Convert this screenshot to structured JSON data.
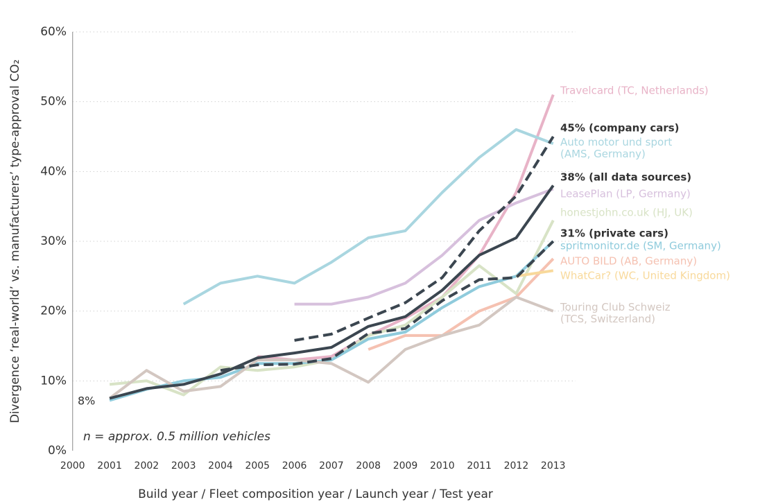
{
  "chart_data": {
    "type": "line",
    "y_label": "Divergence ‘real-world’ vs. manufacturers’ type-approval CO₂",
    "x_label": "Build year / Fleet composition year / Launch year / Test year",
    "annotations": [
      "8%",
      "n = approx. 0.5 million vehicles"
    ],
    "x": [
      2000,
      2001,
      2002,
      2003,
      2004,
      2005,
      2006,
      2007,
      2008,
      2009,
      2010,
      2011,
      2012,
      2013
    ],
    "xlim": [
      2000,
      2013
    ],
    "xticks": [
      2000,
      2001,
      2002,
      2003,
      2004,
      2005,
      2006,
      2007,
      2008,
      2009,
      2010,
      2011,
      2012,
      2013
    ],
    "ylim": [
      0,
      60
    ],
    "yticks": [
      {
        "value": 0,
        "label": "0%"
      },
      {
        "value": 10,
        "label": "10%"
      },
      {
        "value": 20,
        "label": "20%"
      },
      {
        "value": 30,
        "label": "30%"
      },
      {
        "value": 40,
        "label": "40%"
      },
      {
        "value": 50,
        "label": "50%"
      },
      {
        "value": 60,
        "label": "60%"
      }
    ],
    "grid": true,
    "series": [
      {
        "name": "Travelcard (TC, Netherlands)",
        "color": "#e8b3c7",
        "values": [
          null,
          null,
          null,
          null,
          null,
          13.5,
          13,
          13.5,
          16.5,
          19,
          22,
          28,
          37,
          51
        ]
      },
      {
        "name": "45% (company cars)",
        "color": "#3b4650",
        "dashed": true,
        "values": [
          null,
          null,
          null,
          null,
          null,
          null,
          15.8,
          16.7,
          19,
          21.2,
          24.8,
          31.5,
          36.5,
          45
        ]
      },
      {
        "name": "Auto motor und sport\n(AMS, Germany)",
        "color": "#a9d6e0",
        "values": [
          null,
          null,
          null,
          21,
          24,
          25,
          24,
          27,
          30.5,
          31.5,
          37,
          42,
          46,
          44
        ]
      },
      {
        "name": "38% (all data sources)",
        "color": "#3b4650",
        "values": [
          null,
          7.5,
          8.9,
          9.5,
          11,
          13.3,
          14,
          14.8,
          17.8,
          19.2,
          23,
          28,
          30.5,
          38
        ]
      },
      {
        "name": "LeasePlan (LP, Germany)",
        "color": "#d7c0dd",
        "values": [
          null,
          null,
          null,
          null,
          null,
          null,
          21,
          21,
          22,
          24,
          28,
          33,
          35.5,
          37.5
        ]
      },
      {
        "name": "honestjohn.co.uk (HJ, UK)",
        "color": "#d8e3c6",
        "values": [
          null,
          9.5,
          10,
          8,
          12,
          11.5,
          12,
          13,
          16.5,
          18,
          22,
          26.5,
          22.5,
          33
        ]
      },
      {
        "name": "31% (private cars)",
        "color": "#3b4650",
        "dashed": true,
        "values": [
          null,
          null,
          null,
          null,
          11.5,
          12.3,
          12.4,
          13.2,
          16.8,
          17.5,
          21.5,
          24.5,
          24.8,
          30
        ]
      },
      {
        "name": "spritmonitor.de (SM, Germany)",
        "color": "#8fcbdc",
        "values": [
          null,
          7.2,
          8.8,
          10,
          10.5,
          12.5,
          12.5,
          13,
          16,
          17,
          20.5,
          23.5,
          25,
          30
        ]
      },
      {
        "name": "AUTO BILD (AB, Germany)",
        "color": "#f5c1b1",
        "values": [
          null,
          null,
          null,
          null,
          null,
          null,
          null,
          null,
          14.5,
          16.5,
          16.5,
          20,
          22,
          27.5
        ]
      },
      {
        "name": "WhatCar? (WC, United Kingdom)",
        "color": "#f8d99b",
        "values": [
          null,
          null,
          null,
          null,
          null,
          null,
          null,
          null,
          null,
          null,
          null,
          null,
          25,
          25.8
        ]
      },
      {
        "name": "Touring Club Schweiz\n(TCS, Switzerland)",
        "color": "#d3c7c1",
        "values": [
          null,
          7.5,
          11.5,
          8.5,
          9.2,
          13,
          13,
          12.5,
          9.8,
          14.5,
          16.5,
          18,
          22,
          20
        ]
      }
    ]
  }
}
